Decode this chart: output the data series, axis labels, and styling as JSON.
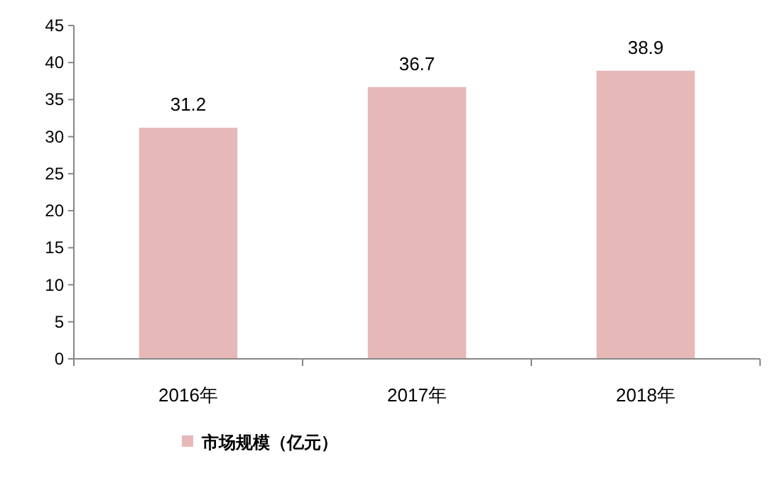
{
  "chart_data": {
    "type": "bar",
    "categories": [
      "2016年",
      "2017年",
      "2018年"
    ],
    "series": [
      {
        "name": "市场规模（亿元）",
        "color": "#e6b9b8",
        "values": [
          31.2,
          36.7,
          38.9
        ]
      }
    ],
    "ylim": [
      0,
      45
    ],
    "yticks": [
      0,
      5,
      10,
      15,
      20,
      25,
      30,
      35,
      40,
      45
    ],
    "data_labels": true,
    "legend": "bottom",
    "grid": false
  }
}
